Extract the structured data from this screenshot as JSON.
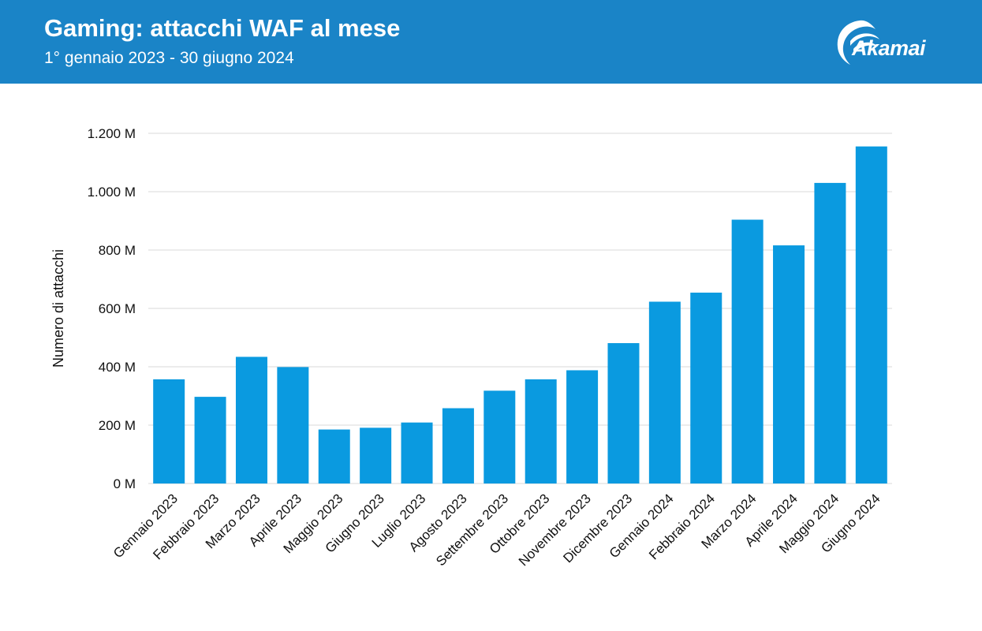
{
  "header": {
    "title": "Gaming: attacchi WAF al mese",
    "subtitle": "1° gennaio 2023 - 30 giugno 2024",
    "logo_text": "Akamai",
    "logo_icon": "akamai-swoosh-icon",
    "background_color": "#1a84c7"
  },
  "chart_data": {
    "type": "bar",
    "title": "Gaming: attacchi WAF al mese",
    "subtitle": "1° gennaio 2023 - 30 giugno 2024",
    "xlabel": "",
    "ylabel": "Numero di attacchi",
    "categories": [
      "Gennaio 2023",
      "Febbraio 2023",
      "Marzo 2023",
      "Aprile 2023",
      "Maggio 2023",
      "Giugno 2023",
      "Luglio 2023",
      "Agosto 2023",
      "Settembre 2023",
      "Ottobre 2023",
      "Novembre 2023",
      "Dicembre 2023",
      "Gennaio 2024",
      "Febbraio 2024",
      "Marzo 2024",
      "Aprile 2024",
      "Maggio 2024",
      "Giugno 2024"
    ],
    "values": [
      357,
      297,
      434,
      399,
      185,
      191,
      209,
      258,
      318,
      357,
      388,
      481,
      623,
      654,
      904,
      816,
      1030,
      1155
    ],
    "unit": "M",
    "ylim": [
      0,
      1200
    ],
    "yticks": [
      0,
      200,
      400,
      600,
      800,
      1000,
      1200
    ],
    "ytick_labels": [
      "0 M",
      "200 M",
      "400 M",
      "600 M",
      "800 M",
      "1.000 M",
      "1.200 M"
    ],
    "grid": true,
    "legend": "none",
    "bar_color": "#0a9ae0",
    "grid_color": "#d9d9d9"
  }
}
